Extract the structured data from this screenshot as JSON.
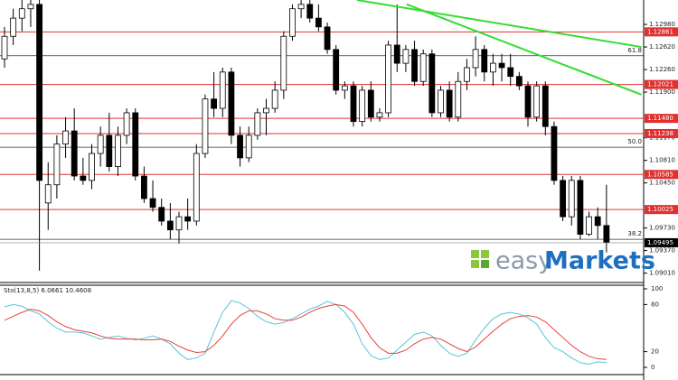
{
  "chart_data": [
    {
      "type": "candlestick",
      "open": [
        1.1243,
        1.1279,
        1.1308,
        1.1323,
        1.133,
        1.1013,
        1.1042,
        1.1107,
        1.1128,
        1.1056,
        1.1049,
        1.1092,
        1.1121,
        1.1071,
        1.1121,
        1.1157,
        1.1056,
        1.102,
        1.1006,
        1.0984,
        1.097,
        1.0991,
        1.0984,
        1.1092,
        1.1179,
        1.1164,
        1.1222,
        1.1121,
        1.1085,
        1.1121,
        1.1157,
        1.1164,
        1.1193,
        1.1279,
        1.1323,
        1.133,
        1.1308,
        1.1294,
        1.1258,
        1.1193,
        1.12,
        1.1143,
        1.1193,
        1.115,
        1.1157,
        1.1265,
        1.1236,
        1.1258,
        1.1207,
        1.1251,
        1.1157,
        1.1193,
        1.115,
        1.1207,
        1.1229,
        1.1258,
        1.1222,
        1.1236,
        1.1229,
        1.1215,
        1.12,
        1.115,
        1.12,
        1.1135,
        1.1049,
        1.0991,
        1.1049,
        1.0963,
        1.0991,
        1.0977
      ],
      "high": [
        1.1294,
        1.1323,
        1.1337,
        1.1337,
        1.1337,
        1.1078,
        1.1121,
        1.115,
        1.1164,
        1.1085,
        1.1107,
        1.1135,
        1.1157,
        1.1135,
        1.1164,
        1.1164,
        1.1071,
        1.1049,
        1.102,
        1.1013,
        1.0999,
        1.102,
        1.1107,
        1.1186,
        1.1222,
        1.1229,
        1.1229,
        1.1135,
        1.1135,
        1.1164,
        1.1179,
        1.1207,
        1.1287,
        1.133,
        1.1337,
        1.1337,
        1.133,
        1.1301,
        1.1265,
        1.1207,
        1.1207,
        1.12,
        1.1207,
        1.1164,
        1.1272,
        1.133,
        1.1265,
        1.1272,
        1.1258,
        1.1258,
        1.12,
        1.1207,
        1.1222,
        1.1243,
        1.1279,
        1.1265,
        1.1251,
        1.1251,
        1.1251,
        1.1222,
        1.1207,
        1.1207,
        1.1207,
        1.1143,
        1.1056,
        1.1056,
        1.1056,
        1.0999,
        1.1006,
        1.1042
      ],
      "low": [
        1.1229,
        1.1265,
        1.1287,
        1.1294,
        1.0905,
        1.097,
        1.102,
        1.1085,
        1.1049,
        1.1042,
        1.1035,
        1.1071,
        1.1063,
        1.1056,
        1.1107,
        1.1049,
        1.1013,
        1.0999,
        1.0977,
        1.0955,
        1.0948,
        1.097,
        1.0977,
        1.1085,
        1.115,
        1.115,
        1.1107,
        1.1071,
        1.1078,
        1.1114,
        1.1121,
        1.1157,
        1.1179,
        1.1272,
        1.1308,
        1.1301,
        1.1287,
        1.1251,
        1.1186,
        1.1179,
        1.1135,
        1.1135,
        1.1143,
        1.1143,
        1.115,
        1.1222,
        1.1222,
        1.12,
        1.12,
        1.115,
        1.115,
        1.1143,
        1.1143,
        1.1193,
        1.1215,
        1.1207,
        1.12,
        1.1207,
        1.12,
        1.1193,
        1.1135,
        1.1143,
        1.1121,
        1.1042,
        1.0984,
        1.0977,
        1.0955,
        1.096,
        1.0955,
        1.0934
      ],
      "close": [
        1.1279,
        1.1308,
        1.1323,
        1.133,
        1.1049,
        1.1042,
        1.1107,
        1.1128,
        1.1056,
        1.1049,
        1.1092,
        1.1121,
        1.1071,
        1.1121,
        1.1157,
        1.1056,
        1.102,
        1.1006,
        1.0984,
        1.097,
        1.0991,
        1.0984,
        1.1092,
        1.1179,
        1.1164,
        1.1222,
        1.1121,
        1.1085,
        1.1121,
        1.1157,
        1.1164,
        1.1193,
        1.1279,
        1.1323,
        1.133,
        1.1308,
        1.1294,
        1.1258,
        1.1193,
        1.12,
        1.1143,
        1.1193,
        1.115,
        1.1157,
        1.1265,
        1.1236,
        1.1258,
        1.1207,
        1.1251,
        1.1157,
        1.1193,
        1.115,
        1.1207,
        1.1229,
        1.1258,
        1.1222,
        1.1236,
        1.1229,
        1.1215,
        1.12,
        1.115,
        1.12,
        1.1135,
        1.1049,
        1.0991,
        1.1049,
        1.0963,
        1.0991,
        1.0977,
        1.095
      ],
      "bull_color": "#ffffff",
      "bear_color": "#000000",
      "ylim": [
        1.0886,
        1.1337
      ],
      "yticks": [
        {
          "value": 1.1298,
          "label": "1.12980"
        },
        {
          "value": 1.1262,
          "label": "1.12620"
        },
        {
          "value": 1.1226,
          "label": "1.12260"
        },
        {
          "value": 1.119,
          "label": "1.11900"
        },
        {
          "value": 1.1117,
          "label": "1.11170"
        },
        {
          "value": 1.1081,
          "label": "1.10810"
        },
        {
          "value": 1.1045,
          "label": "1.10450"
        },
        {
          "value": 1.0973,
          "label": "1.09730"
        },
        {
          "value": 1.0937,
          "label": "1.09370"
        },
        {
          "value": 1.0901,
          "label": "1.09010"
        }
      ],
      "levels": [
        1.12861,
        1.12021,
        {
          "value": 1.1148,
          "label": "1.11480"
        },
        1.11238,
        1.10585,
        1.10025
      ],
      "level_color": "#e03030",
      "fib_levels": [
        {
          "label": "61.8",
          "price": 1.1248
        },
        {
          "label": "50.0",
          "price": 1.1102
        },
        {
          "label": "38.2",
          "price": 1.0955
        }
      ],
      "trendlines": [
        {
          "x": [
            40.4,
            73
          ],
          "y": [
            1.1337,
            1.1262
          ]
        },
        {
          "x": [
            46.1,
            73
          ],
          "y": [
            1.133,
            1.1186
          ]
        }
      ],
      "trend_color": "#33dd33",
      "last_price": 1.09495
    },
    {
      "type": "line",
      "title": "Sto(13,8,5) 6.0661 10.4608",
      "ylim": [
        0,
        100
      ],
      "yticks": [
        100,
        80,
        20,
        0
      ],
      "series": [
        {
          "color": "#56c6da",
          "values": [
            77,
            80,
            78,
            72,
            68,
            58,
            50,
            45,
            45,
            44,
            40,
            36,
            38,
            40,
            37,
            35,
            37,
            40,
            36,
            30,
            18,
            10,
            12,
            18,
            45,
            70,
            85,
            82,
            75,
            65,
            58,
            55,
            57,
            62,
            68,
            74,
            78,
            84,
            80,
            70,
            55,
            30,
            15,
            10,
            12,
            22,
            32,
            42,
            45,
            40,
            28,
            18,
            14,
            18,
            35,
            50,
            62,
            68,
            70,
            68,
            63,
            55,
            38,
            25,
            20,
            12,
            6,
            4,
            7,
            6
          ]
        },
        {
          "color": "#e8403c",
          "values": [
            60,
            65,
            70,
            74,
            72,
            66,
            58,
            52,
            48,
            46,
            44,
            40,
            37,
            36,
            36,
            36,
            35,
            35,
            36,
            33,
            27,
            22,
            19,
            20,
            28,
            40,
            55,
            66,
            72,
            72,
            68,
            62,
            60,
            60,
            64,
            70,
            75,
            78,
            80,
            78,
            70,
            55,
            38,
            25,
            18,
            18,
            22,
            30,
            36,
            38,
            36,
            30,
            24,
            20,
            26,
            36,
            46,
            55,
            62,
            65,
            66,
            64,
            58,
            48,
            38,
            28,
            20,
            14,
            11,
            10
          ]
        }
      ]
    }
  ],
  "watermark": {
    "easy": "easy",
    "markets": "Markets"
  }
}
